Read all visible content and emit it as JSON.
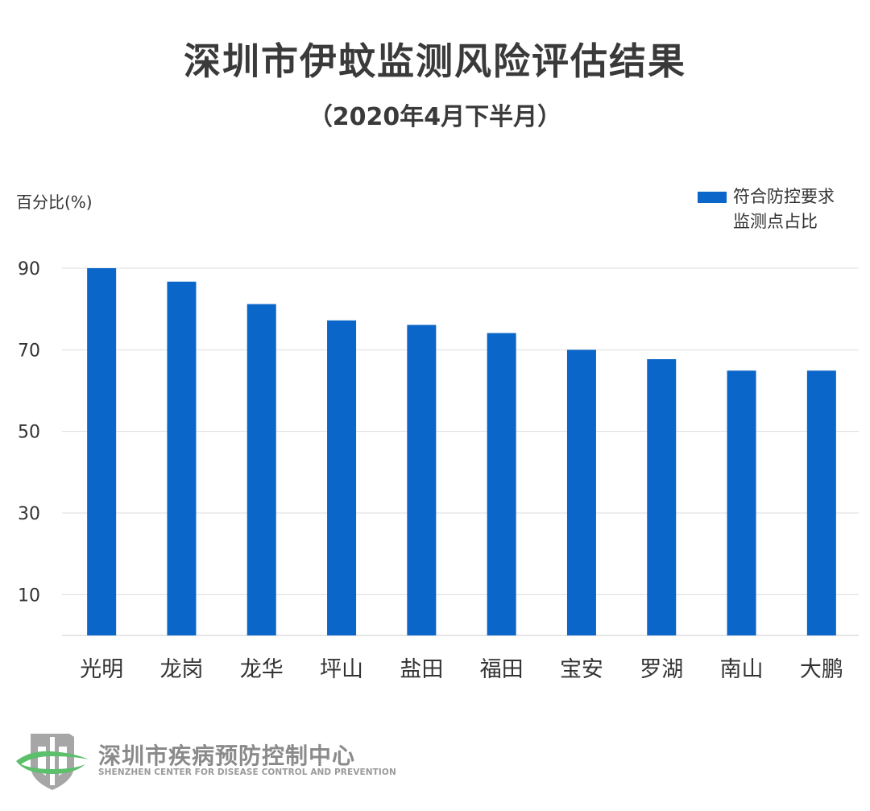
{
  "chart_data": {
    "type": "bar",
    "title": "深圳市伊蚊监测风险评估结果",
    "subtitle": "（2020年4月下半月）",
    "ylabel": "百分比(%)",
    "xlabel": "",
    "categories": [
      "光明",
      "龙岗",
      "龙华",
      "坪山",
      "盐田",
      "福田",
      "宝安",
      "罗湖",
      "南山",
      "大鹏"
    ],
    "series": [
      {
        "name": "符合防控要求监测点占比",
        "legend_lines": [
          "符合防控要求",
          "监测点占比"
        ],
        "values": [
          90,
          86.7,
          81.2,
          77.2,
          76.1,
          74.1,
          70,
          67.7,
          64.9,
          64.9
        ]
      }
    ],
    "yticks": [
      10,
      30,
      50,
      70,
      90
    ],
    "ylim": [
      0,
      90
    ],
    "grid": true,
    "legend_position": "top-right",
    "bar_color": "#0A66C8"
  },
  "footer": {
    "org_cn": "深圳市疾病预防控制中心",
    "org_en": "SHENZHEN CENTER FOR DISEASE CONTROL AND PREVENTION",
    "logo_icon": "cdc-shield-logo-icon"
  }
}
